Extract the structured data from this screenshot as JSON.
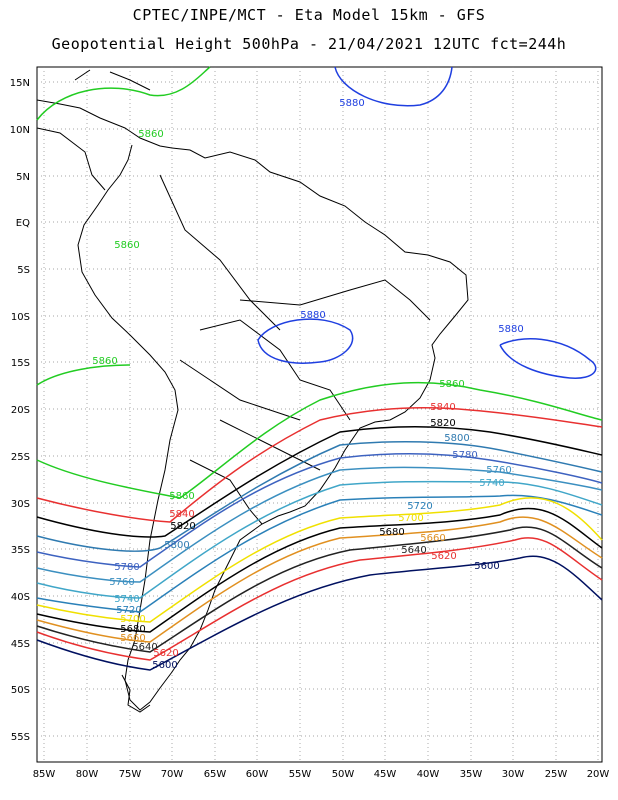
{
  "header": {
    "line1": "CPTEC/INPE/MCT -  Eta Model 15km - GFS",
    "line2": "Geopotential Height 500hPa - 21/04/2021 12UTC fct=244h"
  },
  "axes": {
    "lon_labels": [
      "85W",
      "80W",
      "75W",
      "70W",
      "65W",
      "60W",
      "55W",
      "50W",
      "45W",
      "40W",
      "35W",
      "30W",
      "25W",
      "20W"
    ],
    "lat_labels": [
      "15N",
      "10N",
      "5N",
      "EQ",
      "5S",
      "10S",
      "15S",
      "20S",
      "25S",
      "30S",
      "35S",
      "40S",
      "45S",
      "50S",
      "55S"
    ]
  },
  "contours": [
    {
      "level": "5880",
      "color": "#1f3fe0"
    },
    {
      "level": "5860",
      "color": "#22cc22"
    },
    {
      "level": "5840",
      "color": "#e83030"
    },
    {
      "level": "5820",
      "color": "#000000"
    },
    {
      "level": "5800",
      "color": "#2f7ab0"
    },
    {
      "level": "5780",
      "color": "#3d62c0"
    },
    {
      "level": "5760",
      "color": "#3b8fc0"
    },
    {
      "level": "5740",
      "color": "#40a6c8"
    },
    {
      "level": "5720",
      "color": "#2a80b8"
    },
    {
      "level": "5700",
      "color": "#f0e000"
    },
    {
      "level": "5680",
      "color": "#000000"
    },
    {
      "level": "5660",
      "color": "#e09020"
    },
    {
      "level": "5640",
      "color": "#222222"
    },
    {
      "level": "5620",
      "color": "#e83030"
    },
    {
      "level": "5600",
      "color": "#001060"
    }
  ]
}
